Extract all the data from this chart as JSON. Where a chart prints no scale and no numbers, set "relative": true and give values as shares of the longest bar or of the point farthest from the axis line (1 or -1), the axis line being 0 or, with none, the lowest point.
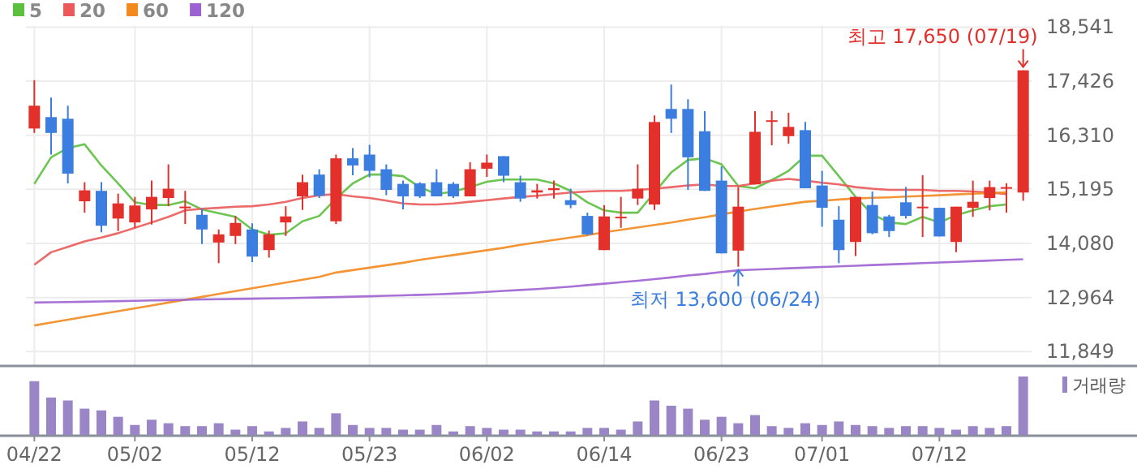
{
  "chart_data": [
    {
      "type": "candlestick",
      "categories": [
        null,
        null,
        null,
        null,
        null,
        null,
        null,
        null,
        null,
        null,
        null,
        null,
        null,
        null,
        null,
        null,
        null,
        null,
        null,
        null,
        null,
        null,
        null,
        null,
        null,
        null,
        null,
        null,
        null,
        null,
        null,
        null,
        null,
        null,
        null,
        null,
        null,
        null,
        null,
        null,
        null,
        null,
        null,
        null,
        null,
        null,
        null,
        null,
        null,
        null,
        null,
        null,
        null,
        null,
        null,
        null,
        null,
        null,
        null,
        null
      ],
      "ohlc": [
        [
          16450,
          17447,
          16359,
          16920
        ],
        [
          16685,
          17087,
          15912,
          16359
        ],
        [
          16651,
          16920,
          15318,
          15520
        ],
        [
          14949,
          15342,
          14714,
          15174
        ],
        [
          15164,
          15342,
          14311,
          14445
        ],
        [
          14593,
          15107,
          14335,
          14905
        ],
        [
          14513,
          15040,
          14402,
          14862
        ],
        [
          14781,
          15375,
          14469,
          15040
        ],
        [
          15016,
          15711,
          14848,
          15208
        ],
        [
          14810,
          15164,
          14479,
          14840
        ],
        [
          14670,
          14794,
          14066,
          14368
        ],
        [
          14099,
          14368,
          13673,
          14267
        ],
        [
          14234,
          14647,
          14066,
          14502
        ],
        [
          14368,
          14493,
          13697,
          13808
        ],
        [
          13942,
          14345,
          13787,
          14267
        ],
        [
          14513,
          14848,
          14234,
          14637
        ],
        [
          15050,
          15500,
          14771,
          15342
        ],
        [
          15500,
          15610,
          15016,
          15063
        ],
        [
          14536,
          15912,
          14479,
          15835
        ],
        [
          15835,
          16047,
          15486,
          15688
        ],
        [
          15912,
          16114,
          15442,
          15577
        ],
        [
          15610,
          15711,
          15073,
          15184
        ],
        [
          15308,
          15375,
          14781,
          15050
        ],
        [
          15318,
          15342,
          15016,
          15050
        ],
        [
          15342,
          15610,
          15050,
          15050
        ],
        [
          15308,
          15342,
          15016,
          15050
        ],
        [
          15050,
          15755,
          15050,
          15610
        ],
        [
          15621,
          15912,
          15452,
          15745
        ],
        [
          15879,
          15879,
          15342,
          15476
        ],
        [
          15342,
          15476,
          14939,
          15006
        ],
        [
          15130,
          15308,
          15006,
          15175
        ],
        [
          15180,
          15375,
          15006,
          15220
        ],
        [
          14972,
          15208,
          14805,
          14872
        ],
        [
          14647,
          14714,
          14245,
          14267
        ],
        [
          13942,
          14872,
          13942,
          14637
        ],
        [
          14600,
          15040,
          14402,
          14630
        ],
        [
          15006,
          15711,
          14872,
          15208
        ],
        [
          14882,
          16718,
          14771,
          16584
        ],
        [
          16853,
          17356,
          16359,
          16651
        ],
        [
          16853,
          17054,
          15184,
          15856
        ],
        [
          16393,
          16809,
          15164,
          15164
        ],
        [
          15375,
          15667,
          13875,
          13875
        ],
        [
          13932,
          15241,
          13600,
          14838
        ],
        [
          15298,
          16809,
          15298,
          16382
        ],
        [
          16600,
          16809,
          16104,
          16620
        ],
        [
          16292,
          16775,
          16137,
          16483
        ],
        [
          16416,
          16584,
          15218,
          15218
        ],
        [
          15274,
          15577,
          14425,
          14815
        ],
        [
          14569,
          14848,
          13673,
          13942
        ],
        [
          14110,
          15040,
          13821,
          15040
        ],
        [
          14872,
          15150,
          14268,
          14291
        ],
        [
          14637,
          14670,
          14211,
          14335
        ],
        [
          14928,
          15241,
          14593,
          14647
        ],
        [
          14810,
          15486,
          14211,
          14838
        ],
        [
          14815,
          14815,
          14224,
          14224
        ],
        [
          14110,
          14838,
          13898,
          14838
        ],
        [
          14815,
          15375,
          14626,
          14939
        ],
        [
          15016,
          15375,
          14761,
          15241
        ],
        [
          15220,
          15318,
          14714,
          15241
        ],
        [
          15130,
          17650,
          14960,
          17650
        ]
      ],
      "colors": [
        "#e3302b",
        "#3b7ee0",
        "#3b7ee0",
        "#e3302b",
        "#3b7ee0",
        "#e3302b",
        "#e3302b",
        "#e3302b",
        "#e3302b",
        "#e3302b",
        "#3b7ee0",
        "#e3302b",
        "#e3302b",
        "#3b7ee0",
        "#e3302b",
        "#e3302b",
        "#e3302b",
        "#3b7ee0",
        "#e3302b",
        "#3b7ee0",
        "#3b7ee0",
        "#3b7ee0",
        "#3b7ee0",
        "#3b7ee0",
        "#3b7ee0",
        "#3b7ee0",
        "#e3302b",
        "#e3302b",
        "#3b7ee0",
        "#3b7ee0",
        "#e3302b",
        "#e3302b",
        "#3b7ee0",
        "#3b7ee0",
        "#e3302b",
        "#e3302b",
        "#e3302b",
        "#e3302b",
        "#3b7ee0",
        "#3b7ee0",
        "#3b7ee0",
        "#3b7ee0",
        "#e3302b",
        "#e3302b",
        "#e3302b",
        "#e3302b",
        "#3b7ee0",
        "#3b7ee0",
        "#3b7ee0",
        "#e3302b",
        "#3b7ee0",
        "#3b7ee0",
        "#3b7ee0",
        "#e3302b",
        "#3b7ee0",
        "#e3302b",
        "#e3302b",
        "#e3302b",
        "#e3302b",
        "#e3302b"
      ],
      "series": [
        {
          "type": "line",
          "name": "5",
          "color": "#5cbf3e",
          "values": [
            15308,
            15855,
            16047,
            16124,
            15687,
            15318,
            14928,
            14872,
            14872,
            14949,
            14781,
            14704,
            14627,
            14368,
            14258,
            14290,
            14536,
            14647,
            15006,
            15318,
            15500,
            15500,
            15466,
            15241,
            15097,
            15150,
            15241,
            15352,
            15399,
            15399,
            15399,
            15318,
            15164,
            14928,
            14761,
            14714,
            14714,
            15130,
            15543,
            15801,
            15835,
            15711,
            15264,
            15218,
            15385,
            15577,
            15889,
            15889,
            15466,
            15040,
            14681,
            14513,
            14479,
            14627,
            14513,
            14660,
            14761,
            14848,
            14882,
            null
          ]
        },
        {
          "type": "line",
          "name": "20",
          "color": "#ea5a5a",
          "values": [
            13640,
            13898,
            14009,
            14123,
            14200,
            14291,
            14402,
            14513,
            14627,
            14761,
            14794,
            14815,
            14838,
            14848,
            14882,
            14939,
            15016,
            15073,
            15097,
            15050,
            15016,
            14962,
            14905,
            14882,
            14882,
            14905,
            14939,
            14972,
            15006,
            15040,
            15063,
            15097,
            15130,
            15150,
            15164,
            15164,
            15184,
            15208,
            15241,
            15275,
            15298,
            15264,
            15264,
            15318,
            15375,
            15409,
            15375,
            15332,
            15298,
            15241,
            15208,
            15184,
            15184,
            15184,
            15164,
            15164,
            15150,
            15130,
            15097,
            null
          ]
        },
        {
          "type": "line",
          "name": "60",
          "color": "#f28a1e",
          "values": [
            12388,
            12447,
            12506,
            12565,
            12624,
            12683,
            12742,
            12801,
            12860,
            12919,
            12978,
            13037,
            13096,
            13155,
            13214,
            13273,
            13332,
            13391,
            13480,
            13530,
            13580,
            13630,
            13680,
            13740,
            13790,
            13840,
            13890,
            13940,
            13990,
            14050,
            14100,
            14150,
            14200,
            14250,
            14310,
            14360,
            14410,
            14460,
            14510,
            14570,
            14620,
            14680,
            14737,
            14790,
            14840,
            14890,
            14939,
            14960,
            14985,
            15006,
            15020,
            15030,
            15045,
            15060,
            15073,
            15090,
            15105,
            15120,
            15135,
            null
          ]
        },
        {
          "type": "line",
          "name": "120",
          "color": "#9d62d2",
          "values": [
            12860,
            12866,
            12872,
            12878,
            12884,
            12890,
            12897,
            12904,
            12911,
            12918,
            12925,
            12930,
            12935,
            12940,
            12945,
            12950,
            12958,
            12966,
            12974,
            12982,
            12990,
            13000,
            13010,
            13020,
            13030,
            13045,
            13060,
            13080,
            13100,
            13120,
            13140,
            13165,
            13190,
            13220,
            13250,
            13280,
            13310,
            13345,
            13380,
            13420,
            13450,
            13490,
            13526,
            13540,
            13553,
            13567,
            13580,
            13594,
            13607,
            13620,
            13634,
            13647,
            13660,
            13674,
            13687,
            13700,
            13714,
            13727,
            13741,
            13754
          ]
        }
      ],
      "ylim": [
        11570,
        18541
      ],
      "yticks": [
        {
          "value": 18541,
          "label": "18,541"
        },
        {
          "value": 17426,
          "label": "17,426"
        },
        {
          "value": 16310,
          "label": "16,310"
        },
        {
          "value": 15195,
          "label": "15,195"
        },
        {
          "value": 14080,
          "label": "14,080"
        },
        {
          "value": 12964,
          "label": "12,964"
        },
        {
          "value": 11849,
          "label": "11,849"
        }
      ],
      "grid": true,
      "legend": "top left",
      "tick_labels": "y",
      "annotations": [
        "최고 17,650 (07/19)",
        "최저 13,600 (06/24)"
      ]
    },
    {
      "type": "bar",
      "relative": true,
      "categories": [
        "04/22",
        null,
        null,
        null,
        null,
        null,
        "05/02",
        null,
        null,
        null,
        null,
        null,
        null,
        "05/12",
        null,
        null,
        null,
        null,
        null,
        null,
        "05/23",
        null,
        null,
        null,
        null,
        null,
        null,
        "06/02",
        null,
        null,
        null,
        null,
        null,
        null,
        "06/14",
        null,
        null,
        null,
        null,
        null,
        null,
        "06/23",
        null,
        null,
        null,
        null,
        null,
        "07/01",
        null,
        null,
        null,
        null,
        null,
        null,
        "07/12",
        null,
        null,
        null,
        null,
        null
      ],
      "series": [
        {
          "name": "거래량",
          "color": "#9a86c6",
          "values": [
            0.92,
            0.64,
            0.59,
            0.45,
            0.42,
            0.31,
            0.17,
            0.26,
            0.2,
            0.15,
            0.15,
            0.2,
            0.09,
            0.15,
            0.06,
            0.12,
            0.23,
            0.12,
            0.37,
            0.17,
            0.12,
            0.12,
            0.09,
            0.09,
            0.17,
            0.06,
            0.15,
            0.12,
            0.09,
            0.09,
            0.06,
            0.06,
            0.06,
            0.12,
            0.12,
            0.09,
            0.23,
            0.59,
            0.5,
            0.45,
            0.26,
            0.31,
            0.2,
            0.34,
            0.15,
            0.12,
            0.2,
            0.17,
            0.23,
            0.17,
            0.15,
            0.12,
            0.15,
            0.15,
            0.12,
            0.09,
            0.15,
            0.12,
            0.15,
            1
          ]
        }
      ],
      "legend": "top right"
    }
  ]
}
